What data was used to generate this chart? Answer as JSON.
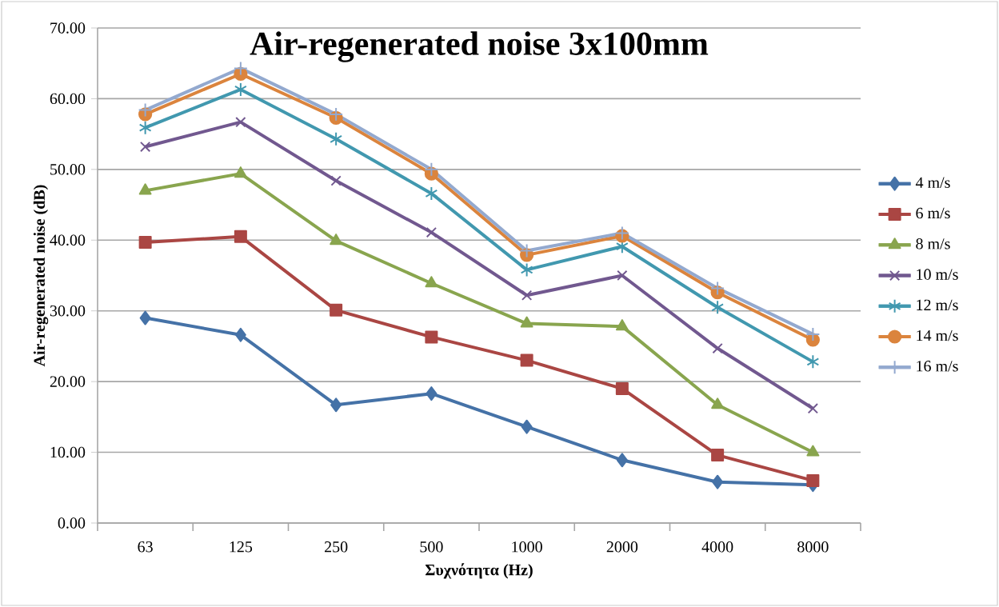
{
  "chart_data": {
    "type": "line",
    "title": "Air-regenerated noise 3x100mm",
    "xlabel": "Συχνότητα (Hz)",
    "ylabel": "Air-regenerated noise (dB)",
    "categories": [
      "63",
      "125",
      "250",
      "500",
      "1000",
      "2000",
      "4000",
      "8000"
    ],
    "ylim": [
      0,
      70
    ],
    "yticks": [
      {
        "value": 0,
        "label": "0.00"
      },
      {
        "value": 10,
        "label": "10.00"
      },
      {
        "value": 20,
        "label": "20.00"
      },
      {
        "value": 30,
        "label": "30.00"
      },
      {
        "value": 40,
        "label": "40.00"
      },
      {
        "value": 50,
        "label": "50.00"
      },
      {
        "value": 60,
        "label": "60.00"
      },
      {
        "value": 70,
        "label": "70.00"
      }
    ],
    "grid": "y",
    "legend": "right",
    "line_style": "solid",
    "series": [
      {
        "name": "4 m/s",
        "color": "#4572a7",
        "marker": "diamond",
        "values": [
          29.0,
          26.6,
          16.7,
          18.3,
          13.6,
          8.9,
          5.8,
          5.4
        ]
      },
      {
        "name": "6 m/s",
        "color": "#aa4643",
        "marker": "square",
        "values": [
          39.7,
          40.5,
          30.1,
          26.3,
          23.0,
          19.0,
          9.6,
          6.0
        ]
      },
      {
        "name": "8 m/s",
        "color": "#89a54e",
        "marker": "triangle",
        "values": [
          47.0,
          49.4,
          39.9,
          33.9,
          28.2,
          27.8,
          16.7,
          10.0
        ]
      },
      {
        "name": "10 m/s",
        "color": "#71588f",
        "marker": "cross",
        "values": [
          53.2,
          56.7,
          48.4,
          41.1,
          32.2,
          35.0,
          24.7,
          16.2
        ]
      },
      {
        "name": "12 m/s",
        "color": "#4198af",
        "marker": "cross",
        "values": [
          55.9,
          61.3,
          54.3,
          46.6,
          35.8,
          39.1,
          30.5,
          22.8
        ]
      },
      {
        "name": "14 m/s",
        "color": "#db843d",
        "marker": "circle",
        "values": [
          57.8,
          63.5,
          57.3,
          49.4,
          37.9,
          40.6,
          32.6,
          25.9
        ]
      },
      {
        "name": "16 m/s",
        "color": "#93a9cf",
        "marker": "cross",
        "values": [
          58.4,
          64.3,
          57.8,
          50.0,
          38.5,
          41.0,
          33.2,
          26.7
        ]
      }
    ]
  }
}
